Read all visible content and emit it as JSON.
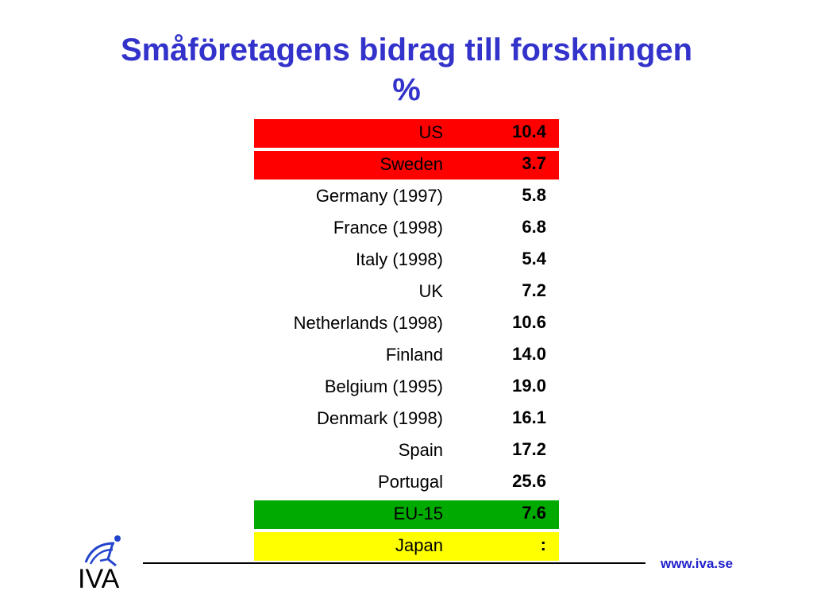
{
  "title": {
    "line1": "Småföretagens bidrag till forskningen",
    "line2": "%"
  },
  "table": {
    "rows": [
      {
        "label": "US",
        "value": "10.4",
        "highlight": "#ff0000"
      },
      {
        "label": "Sweden",
        "value": "3.7",
        "highlight": "#ff0000"
      },
      {
        "label": "Germany (1997)",
        "value": "5.8"
      },
      {
        "label": "France (1998)",
        "value": "6.8"
      },
      {
        "label": "Italy (1998)",
        "value": "5.4"
      },
      {
        "label": "UK",
        "value": "7.2"
      },
      {
        "label": "Netherlands (1998)",
        "value": "10.6"
      },
      {
        "label": "Finland",
        "value": "14.0"
      },
      {
        "label": "Belgium (1995)",
        "value": "19.0"
      },
      {
        "label": "Denmark (1998)",
        "value": "16.1"
      },
      {
        "label": "Spain",
        "value": "17.2"
      },
      {
        "label": "Portugal",
        "value": "25.6"
      },
      {
        "label": "EU-15",
        "value": "7.6",
        "highlight": "#00aa00"
      },
      {
        "label": "Japan",
        "value": ":",
        "highlight": "#ffff00"
      }
    ]
  },
  "footer": {
    "url": "www.iva.se",
    "logo_text": "IVA"
  },
  "colors": {
    "title": "#3333cc",
    "url": "#2222cc"
  }
}
